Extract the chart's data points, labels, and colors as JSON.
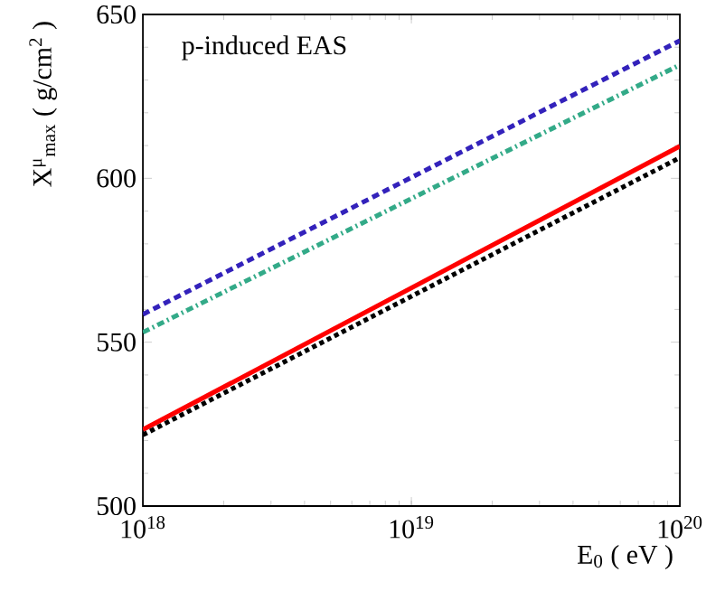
{
  "chart_data": {
    "type": "line",
    "xlabel": "E$_{0}$ ( eV )",
    "ylabel": "X$^{μ}$$_{max}$ ( g/cm$^{2}$ )",
    "annotations": [
      "p-induced EAS"
    ],
    "x": [
      1e+18,
      1e+20
    ],
    "log": "x",
    "xlim": [
      1e+18,
      1e+20
    ],
    "ylim": [
      500,
      650
    ],
    "xticks": [
      {
        "value": 1e+18,
        "label": "10$^{18}$"
      },
      {
        "value": 1e+19,
        "label": "10$^{19}$"
      },
      {
        "value": 1e+20,
        "label": "10$^{20}$"
      }
    ],
    "yticks": [
      500,
      550,
      600,
      650
    ],
    "grid": false,
    "marker": "none",
    "series": [
      {
        "color": "#3322bb",
        "line_style": "dashed",
        "values": [
          558.5,
          642
        ]
      },
      {
        "color": "#33aa88",
        "line_style": "dashdot",
        "values": [
          553,
          634.6
        ]
      },
      {
        "color": "#ff0000",
        "line_style": "solid",
        "values": [
          523.3,
          609.8
        ]
      },
      {
        "color": "#000000",
        "line_style": "dotted",
        "values": [
          521.7,
          606.3
        ]
      }
    ]
  }
}
